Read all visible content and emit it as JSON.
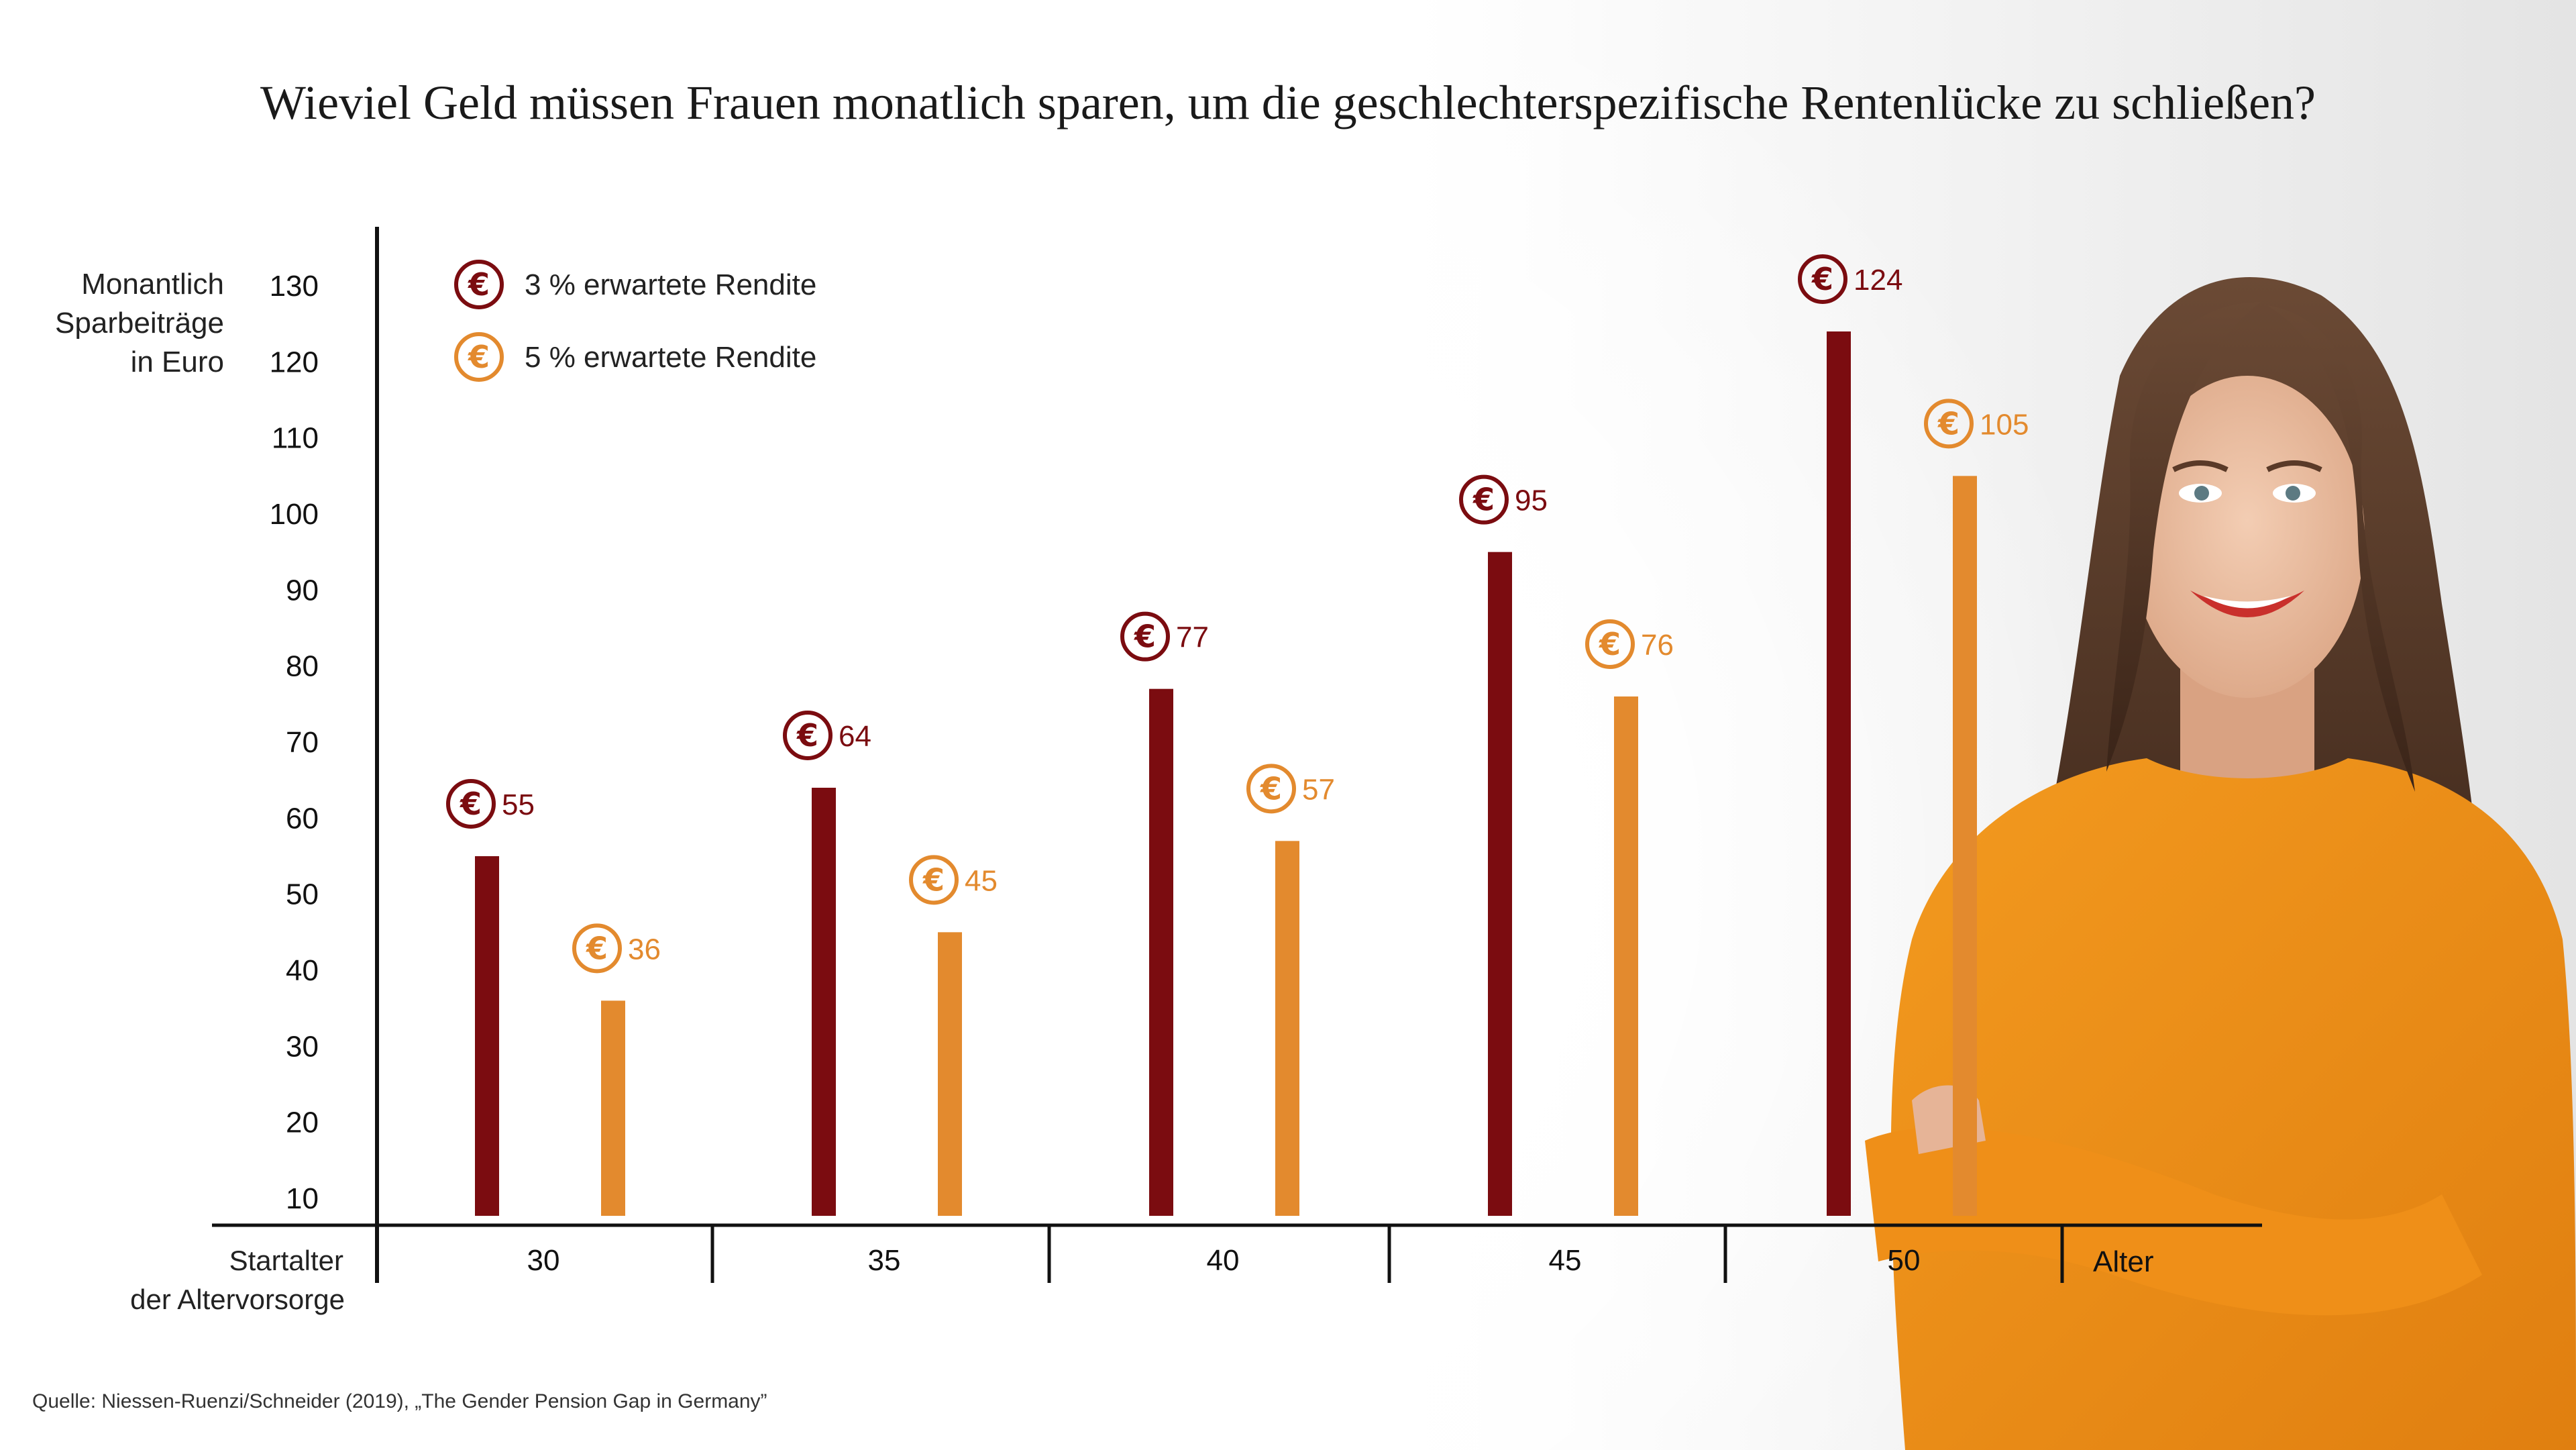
{
  "title": "Wieviel Geld müssen Frauen monatlich sparen, um die geschlechterspezifische Rentenlücke zu schließen?",
  "source": "Quelle: Niessen-Ruenzi/Schneider (2019), „The Gender Pension Gap in Germany”",
  "colors": {
    "dark": "#7b0c10",
    "light": "#e38a2e",
    "axis": "#111111"
  },
  "icons": {
    "euro": "euro-coin-icon"
  },
  "photo": {
    "description_icon": "smiling-woman-photo"
  },
  "chart_data": {
    "type": "bar",
    "ylabel": [
      "Monantlich",
      "Sparbeiträge",
      "in Euro"
    ],
    "xlabel": [
      "Startalter",
      "der Altervorsorge"
    ],
    "x_end_label": "Alter",
    "yticks": [
      10,
      20,
      30,
      40,
      50,
      60,
      70,
      80,
      90,
      100,
      110,
      120,
      130
    ],
    "ylim": [
      8,
      135
    ],
    "categories": [
      "30",
      "35",
      "40",
      "45",
      "50"
    ],
    "series": [
      {
        "name": "3 % erwartete Rendite",
        "color": "#7b0c10",
        "values": [
          55,
          64,
          77,
          95,
          124
        ]
      },
      {
        "name": "5 % erwartete Rendite",
        "color": "#e38a2e",
        "values": [
          36,
          45,
          57,
          76,
          105
        ]
      }
    ],
    "legend_position": "top-left",
    "grid": false
  }
}
